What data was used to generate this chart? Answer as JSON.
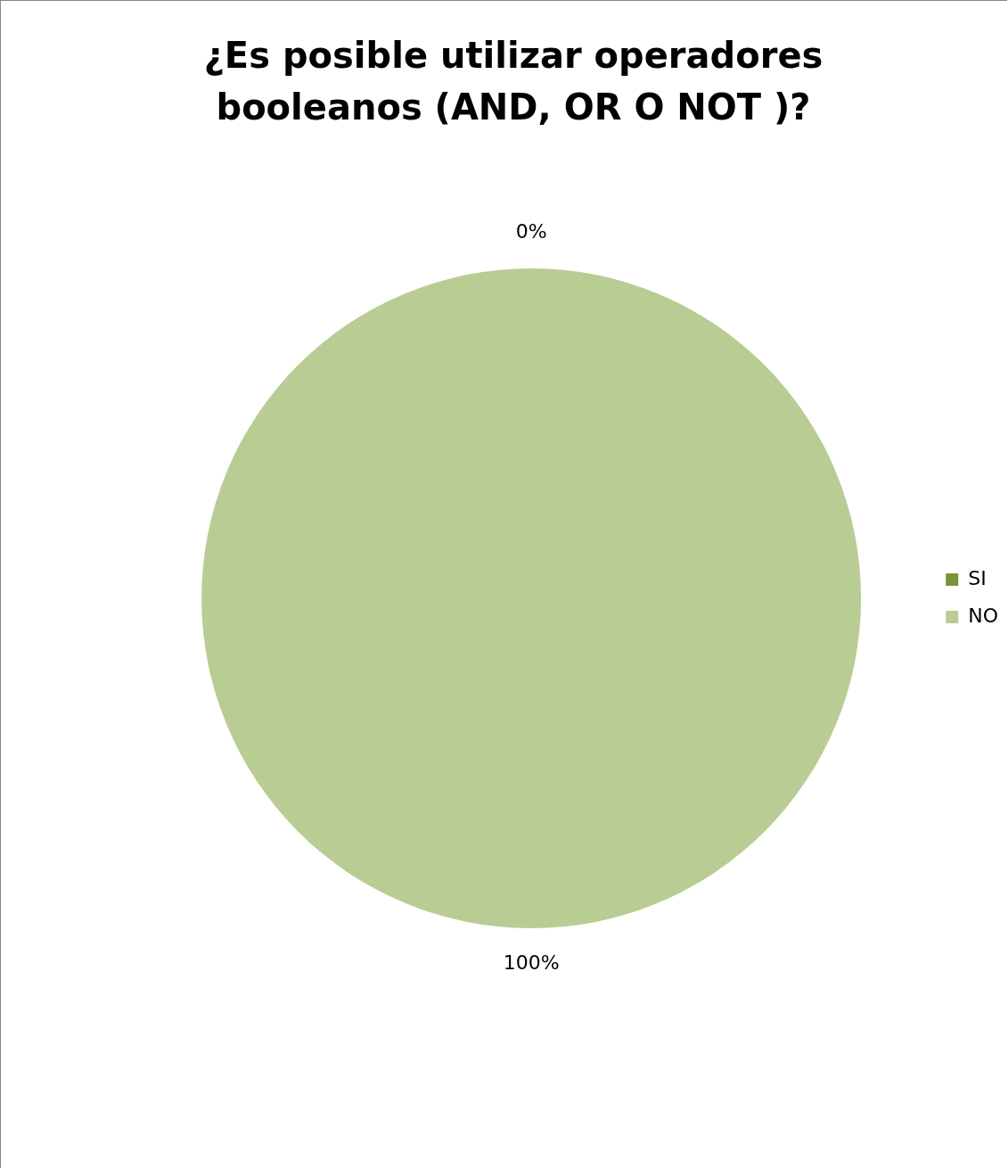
{
  "chart_data": {
    "type": "pie",
    "title": "¿Es posible utilizar operadores booleanos (AND, OR O NOT )?",
    "categories": [
      "SI",
      "NO"
    ],
    "values": [
      0,
      100
    ],
    "colors": [
      "#77933c",
      "#b9cc94"
    ],
    "value_labels": [
      "0%",
      "100%"
    ],
    "legend": "right"
  }
}
